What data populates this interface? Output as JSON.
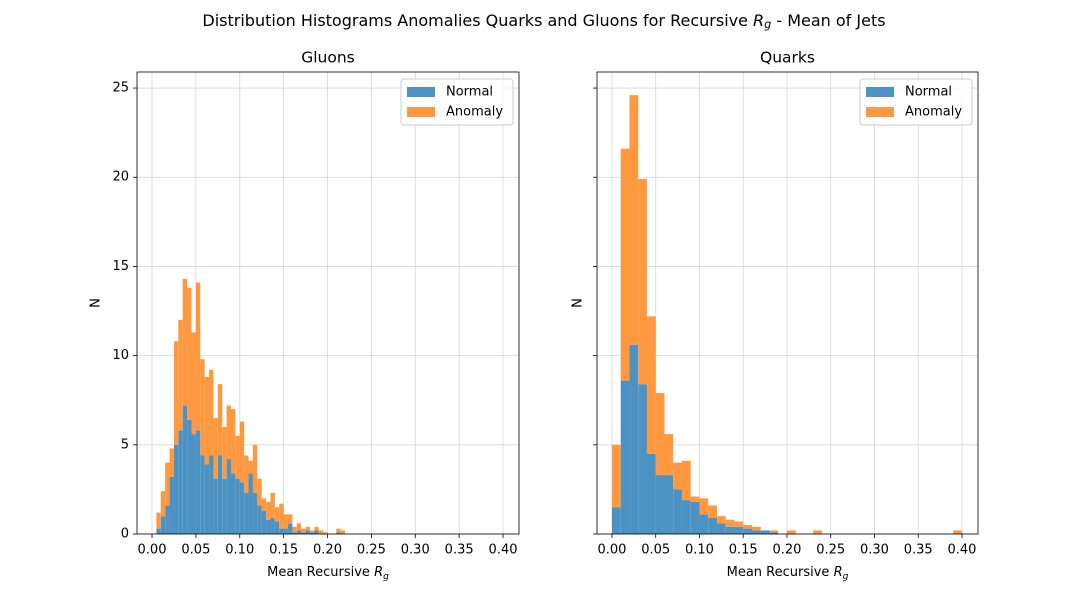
{
  "title": "Distribution Histograms Anomalies Quarks and Gluons for Recursive $R_g$ - Mean of Jets",
  "chart_data": [
    {
      "type": "histogram",
      "title": "Gluons",
      "xlabel": "Mean Recursive $R_g$",
      "ylabel": "N",
      "bins": [
        0,
        0.005,
        0.01,
        0.015,
        0.02,
        0.025,
        0.03,
        0.035,
        0.04,
        0.045,
        0.05,
        0.055,
        0.06,
        0.065,
        0.07,
        0.075,
        0.08,
        0.085,
        0.09,
        0.095,
        0.1,
        0.105,
        0.11,
        0.115,
        0.12,
        0.125,
        0.13,
        0.135,
        0.14,
        0.145,
        0.15,
        0.155,
        0.16,
        0.165,
        0.17,
        0.175,
        0.18,
        0.185,
        0.19,
        0.195,
        0.2,
        0.205,
        0.21,
        0.215,
        0.22
      ],
      "series": [
        {
          "name": "Normal",
          "color": "#4c92c3",
          "values": [
            0,
            0.3,
            1.0,
            1.6,
            3.2,
            5.0,
            5.8,
            7.2,
            6.4,
            5.6,
            5.8,
            4.4,
            3.9,
            4.4,
            3.1,
            4.4,
            3.1,
            4.2,
            3.4,
            3.1,
            2.9,
            2.3,
            3.4,
            2.3,
            1.6,
            1.3,
            0.8,
            0.9,
            0.7,
            0.3,
            0.3,
            0.6,
            0.1,
            0.2,
            0.1,
            0.2,
            0.1,
            0.2,
            0,
            0,
            0,
            0,
            0.1,
            0
          ]
        },
        {
          "name": "Anomaly",
          "color": "#ff983e",
          "values": [
            0,
            0.9,
            1.4,
            2.4,
            1.6,
            5.8,
            6.2,
            7.1,
            7.4,
            5.7,
            8.3,
            5.4,
            4.9,
            4.8,
            3.4,
            4.0,
            2.9,
            3.0,
            3.6,
            2.4,
            3.4,
            2.1,
            0.7,
            2.7,
            1.5,
            0.7,
            1.0,
            1.4,
            0.8,
            1.4,
            0.8,
            0.5,
            0.3,
            0.4,
            0.2,
            0.2,
            0.1,
            0.2,
            0.2,
            0.1,
            0,
            0,
            0.2,
            0.2
          ]
        }
      ],
      "xlim": [
        -0.0171,
        0.4182
      ],
      "ylim": [
        0,
        25.9
      ],
      "xticks": [
        {
          "value": 0,
          "label": "0.00"
        },
        {
          "value": 0.05,
          "label": "0.05"
        },
        {
          "value": 0.1,
          "label": "0.10"
        },
        {
          "value": 0.15,
          "label": "0.15"
        },
        {
          "value": 0.2,
          "label": "0.20"
        },
        {
          "value": 0.25,
          "label": "0.25"
        },
        {
          "value": 0.3,
          "label": "0.30"
        },
        {
          "value": 0.35,
          "label": "0.35"
        },
        {
          "value": 0.4,
          "label": "0.40"
        }
      ],
      "yticks": [
        0,
        5,
        10,
        15,
        20,
        25
      ],
      "ytick_labels": true,
      "grid": true,
      "legend": "upper right",
      "stacked": true
    },
    {
      "type": "histogram",
      "title": "Quarks",
      "xlabel": "Mean Recursive $R_g$",
      "ylabel": "N",
      "bins": [
        0,
        0.01,
        0.02,
        0.03,
        0.04,
        0.05,
        0.06,
        0.07,
        0.08,
        0.09,
        0.1,
        0.11,
        0.12,
        0.13,
        0.14,
        0.15,
        0.16,
        0.17,
        0.18,
        0.19,
        0.2,
        0.21,
        0.22,
        0.23,
        0.24,
        0.25,
        0.26,
        0.27,
        0.28,
        0.29,
        0.3,
        0.31,
        0.32,
        0.33,
        0.34,
        0.35,
        0.36,
        0.37,
        0.38,
        0.39,
        0.4
      ],
      "series": [
        {
          "name": "Normal",
          "color": "#4c92c3",
          "values": [
            1.5,
            8.6,
            10.6,
            8.4,
            4.5,
            3.3,
            3.3,
            2.5,
            1.9,
            1.8,
            1.1,
            0.9,
            0.6,
            0.4,
            0.4,
            0.3,
            0.2,
            0.2,
            0.1,
            0,
            0,
            0,
            0,
            0,
            0,
            0,
            0,
            0,
            0,
            0,
            0,
            0,
            0,
            0,
            0,
            0,
            0,
            0,
            0,
            0
          ]
        },
        {
          "name": "Anomaly",
          "color": "#ff983e",
          "values": [
            3.5,
            13.0,
            14.0,
            11.5,
            7.7,
            4.6,
            2.3,
            1.5,
            2.2,
            0.3,
            0.9,
            0.7,
            0.4,
            0.4,
            0.3,
            0.2,
            0.2,
            0,
            0.1,
            0,
            0.2,
            0,
            0,
            0.2,
            0,
            0,
            0,
            0,
            0,
            0,
            0,
            0,
            0,
            0,
            0,
            0,
            0,
            0,
            0,
            0.2
          ]
        }
      ],
      "xlim": [
        -0.0171,
        0.4183
      ],
      "ylim": [
        0,
        25.9
      ],
      "xticks": [
        {
          "value": 0,
          "label": "0.00"
        },
        {
          "value": 0.05,
          "label": "0.05"
        },
        {
          "value": 0.1,
          "label": "0.10"
        },
        {
          "value": 0.15,
          "label": "0.15"
        },
        {
          "value": 0.2,
          "label": "0.20"
        },
        {
          "value": 0.25,
          "label": "0.25"
        },
        {
          "value": 0.3,
          "label": "0.30"
        },
        {
          "value": 0.35,
          "label": "0.35"
        },
        {
          "value": 0.4,
          "label": "0.40"
        }
      ],
      "yticks": [
        0,
        5,
        10,
        15,
        20,
        25
      ],
      "ytick_labels": false,
      "grid": true,
      "legend": "upper right",
      "stacked": true
    }
  ]
}
